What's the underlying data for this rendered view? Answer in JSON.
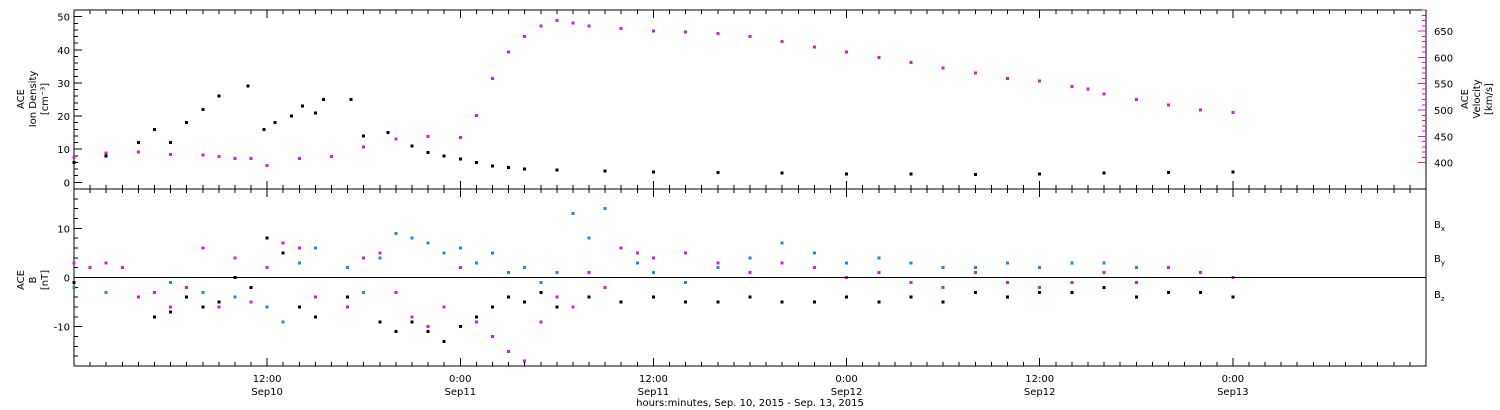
{
  "colors": {
    "black": "#000000",
    "blue": "#1e88e5",
    "magenta": "#d61ed6"
  },
  "chart_data": [
    {
      "type": "scatter",
      "title": "",
      "xlabel": "hours:minutes, Sep. 10, 2015 - Sep. 13, 2015",
      "x_range_hours": [
        0,
        84
      ],
      "x_ticks": [
        {
          "hour": 12,
          "time": "12:00",
          "day": "Sep10"
        },
        {
          "hour": 24,
          "time": "0:00",
          "day": "Sep11"
        },
        {
          "hour": 36,
          "time": "12:00",
          "day": "Sep11"
        },
        {
          "hour": 48,
          "time": "0:00",
          "day": "Sep12"
        },
        {
          "hour": 60,
          "time": "12:00",
          "day": "Sep12"
        },
        {
          "hour": 72,
          "time": "0:00",
          "day": "Sep13"
        }
      ],
      "ylabel_lines": [
        "ACE",
        "Ion Density",
        "[cm⁻³]"
      ],
      "ylim": [
        -2,
        52
      ],
      "y_ticks": [
        0,
        10,
        20,
        30,
        40,
        50
      ],
      "y2label_lines": [
        "ACE",
        "Velocity",
        "[km/s]"
      ],
      "y2lim": [
        350,
        690
      ],
      "y2_ticks": [
        400,
        450,
        500,
        550,
        600,
        650
      ],
      "series": [
        {
          "name": "",
          "axis": "left",
          "color": "#000000",
          "points": [
            [
              0,
              6
            ],
            [
              2,
              8
            ],
            [
              4,
              12
            ],
            [
              5,
              16
            ],
            [
              6,
              12
            ],
            [
              7,
              18
            ],
            [
              8,
              22
            ],
            [
              9,
              26
            ],
            [
              10.8,
              29
            ],
            [
              11.8,
              16
            ],
            [
              12.5,
              18
            ],
            [
              13.5,
              20
            ],
            [
              14.2,
              23
            ],
            [
              15,
              21
            ],
            [
              15.5,
              25
            ],
            [
              17.2,
              25
            ],
            [
              18,
              14
            ],
            [
              19.5,
              15
            ],
            [
              21,
              11
            ],
            [
              22,
              9
            ],
            [
              23,
              8
            ],
            [
              24,
              7
            ],
            [
              25,
              6
            ],
            [
              26,
              5
            ],
            [
              27,
              4.5
            ],
            [
              28,
              4
            ],
            [
              30,
              3.8
            ],
            [
              33,
              3.5
            ],
            [
              36,
              3.2
            ],
            [
              40,
              3
            ],
            [
              44,
              2.8
            ],
            [
              48,
              2.6
            ],
            [
              52,
              2.5
            ],
            [
              56,
              2.4
            ],
            [
              60,
              2.6
            ],
            [
              64,
              2.8
            ],
            [
              68,
              3
            ],
            [
              72,
              3.2
            ]
          ]
        },
        {
          "name": "",
          "axis": "right",
          "color": "#d61ed6",
          "points": [
            [
              0,
              410
            ],
            [
              2,
              418
            ],
            [
              4,
              420
            ],
            [
              6,
              416
            ],
            [
              8,
              415
            ],
            [
              9,
              412
            ],
            [
              10,
              408
            ],
            [
              11,
              408
            ],
            [
              12,
              395
            ],
            [
              14,
              408
            ],
            [
              16,
              412
            ],
            [
              18,
              430
            ],
            [
              20,
              445
            ],
            [
              22,
              450
            ],
            [
              24,
              448
            ],
            [
              25,
              490
            ],
            [
              26,
              560
            ],
            [
              27,
              610
            ],
            [
              28,
              640
            ],
            [
              29,
              660
            ],
            [
              30,
              670
            ],
            [
              31,
              665
            ],
            [
              32,
              660
            ],
            [
              34,
              655
            ],
            [
              36,
              650
            ],
            [
              38,
              648
            ],
            [
              40,
              645
            ],
            [
              42,
              640
            ],
            [
              44,
              630
            ],
            [
              46,
              620
            ],
            [
              48,
              610
            ],
            [
              50,
              600
            ],
            [
              52,
              590
            ],
            [
              54,
              580
            ],
            [
              56,
              570
            ],
            [
              58,
              560
            ],
            [
              60,
              555
            ],
            [
              62,
              545
            ],
            [
              63,
              540
            ],
            [
              64,
              530
            ],
            [
              66,
              520
            ],
            [
              68,
              510
            ],
            [
              70,
              500
            ],
            [
              72,
              495
            ]
          ]
        }
      ]
    },
    {
      "type": "scatter",
      "title": "",
      "xlabel": "hours:minutes, Sep. 10, 2015 - Sep. 13, 2015",
      "x_range_hours": [
        0,
        84
      ],
      "ylabel_lines": [
        "ACE",
        "B",
        "[nT]"
      ],
      "ylim": [
        -18,
        18
      ],
      "y_ticks": [
        -10,
        0,
        10
      ],
      "zero_line": true,
      "legend": {
        "placement": "right",
        "entries": [
          {
            "label": "Bx",
            "main": "B",
            "sub": "x",
            "color": "#000000"
          },
          {
            "label": "By",
            "main": "B",
            "sub": "y",
            "color": "#1e88e5"
          },
          {
            "label": "Bz",
            "main": "B",
            "sub": "z",
            "color": "#d61ed6"
          }
        ]
      },
      "series": [
        {
          "name": "Bx",
          "color": "#000000",
          "points": [
            [
              0,
              -1
            ],
            [
              2,
              3
            ],
            [
              4,
              -4
            ],
            [
              5,
              -8
            ],
            [
              6,
              -7
            ],
            [
              7,
              -4
            ],
            [
              8,
              -6
            ],
            [
              9,
              -5
            ],
            [
              10,
              0
            ],
            [
              11,
              -2
            ],
            [
              12,
              8
            ],
            [
              13,
              5
            ],
            [
              14,
              -6
            ],
            [
              15,
              -8
            ],
            [
              17,
              -4
            ],
            [
              19,
              -9
            ],
            [
              20,
              -11
            ],
            [
              21,
              -9
            ],
            [
              22,
              -11
            ],
            [
              23,
              -13
            ],
            [
              24,
              -10
            ],
            [
              25,
              -8
            ],
            [
              26,
              -6
            ],
            [
              27,
              -4
            ],
            [
              28,
              -5
            ],
            [
              29,
              -3
            ],
            [
              30,
              -6
            ],
            [
              32,
              -4
            ],
            [
              34,
              -5
            ],
            [
              36,
              -4
            ],
            [
              38,
              -5
            ],
            [
              40,
              -5
            ],
            [
              42,
              -4
            ],
            [
              44,
              -5
            ],
            [
              46,
              -5
            ],
            [
              48,
              -4
            ],
            [
              50,
              -5
            ],
            [
              52,
              -4
            ],
            [
              54,
              -5
            ],
            [
              56,
              -3
            ],
            [
              58,
              -4
            ],
            [
              60,
              -3
            ],
            [
              62,
              -3
            ],
            [
              64,
              -2
            ],
            [
              66,
              -4
            ],
            [
              68,
              -3
            ],
            [
              70,
              -3
            ],
            [
              72,
              -4
            ]
          ]
        },
        {
          "name": "By",
          "color": "#1e88e5",
          "points": [
            [
              0,
              -2
            ],
            [
              2,
              -3
            ],
            [
              4,
              -4
            ],
            [
              5,
              -3
            ],
            [
              6,
              -1
            ],
            [
              8,
              -3
            ],
            [
              9,
              -6
            ],
            [
              10,
              -4
            ],
            [
              12,
              -6
            ],
            [
              13,
              -9
            ],
            [
              14,
              3
            ],
            [
              15,
              6
            ],
            [
              17,
              2
            ],
            [
              18,
              -3
            ],
            [
              19,
              4
            ],
            [
              20,
              9
            ],
            [
              21,
              8
            ],
            [
              22,
              7
            ],
            [
              23,
              5
            ],
            [
              24,
              6
            ],
            [
              25,
              3
            ],
            [
              26,
              5
            ],
            [
              27,
              1
            ],
            [
              28,
              2
            ],
            [
              29,
              -1
            ],
            [
              30,
              1
            ],
            [
              31,
              13
            ],
            [
              32,
              8
            ],
            [
              33,
              14
            ],
            [
              34,
              6
            ],
            [
              35,
              3
            ],
            [
              36,
              1
            ],
            [
              38,
              -1
            ],
            [
              40,
              2
            ],
            [
              42,
              4
            ],
            [
              44,
              7
            ],
            [
              46,
              5
            ],
            [
              48,
              3
            ],
            [
              50,
              4
            ],
            [
              52,
              3
            ],
            [
              54,
              2
            ],
            [
              56,
              2
            ],
            [
              58,
              3
            ],
            [
              60,
              2
            ],
            [
              62,
              3
            ],
            [
              64,
              3
            ],
            [
              66,
              2
            ],
            [
              68,
              2
            ],
            [
              70,
              1
            ],
            [
              72,
              0
            ]
          ]
        },
        {
          "name": "Bz",
          "color": "#d61ed6",
          "points": [
            [
              0,
              3
            ],
            [
              1,
              2
            ],
            [
              2,
              3
            ],
            [
              3,
              2
            ],
            [
              4,
              -4
            ],
            [
              5,
              -3
            ],
            [
              6,
              -6
            ],
            [
              7,
              -2
            ],
            [
              8,
              6
            ],
            [
              9,
              -6
            ],
            [
              10,
              4
            ],
            [
              11,
              -5
            ],
            [
              12,
              2
            ],
            [
              13,
              7
            ],
            [
              14,
              6
            ],
            [
              15,
              -4
            ],
            [
              17,
              -6
            ],
            [
              18,
              4
            ],
            [
              19,
              5
            ],
            [
              20,
              -3
            ],
            [
              21,
              -8
            ],
            [
              22,
              -10
            ],
            [
              23,
              -6
            ],
            [
              24,
              2
            ],
            [
              25,
              -9
            ],
            [
              26,
              -12
            ],
            [
              27,
              -15
            ],
            [
              28,
              -17
            ],
            [
              29,
              -9
            ],
            [
              30,
              -4
            ],
            [
              31,
              -6
            ],
            [
              32,
              1
            ],
            [
              33,
              -2
            ],
            [
              34,
              6
            ],
            [
              35,
              5
            ],
            [
              36,
              4
            ],
            [
              38,
              5
            ],
            [
              40,
              3
            ],
            [
              42,
              1
            ],
            [
              44,
              3
            ],
            [
              46,
              2
            ],
            [
              48,
              0
            ],
            [
              50,
              1
            ],
            [
              52,
              -1
            ],
            [
              54,
              -2
            ],
            [
              56,
              1
            ],
            [
              58,
              -1
            ],
            [
              60,
              -2
            ],
            [
              62,
              -1
            ],
            [
              64,
              1
            ],
            [
              66,
              -1
            ],
            [
              68,
              2
            ],
            [
              70,
              1
            ],
            [
              72,
              0
            ]
          ]
        }
      ]
    }
  ]
}
